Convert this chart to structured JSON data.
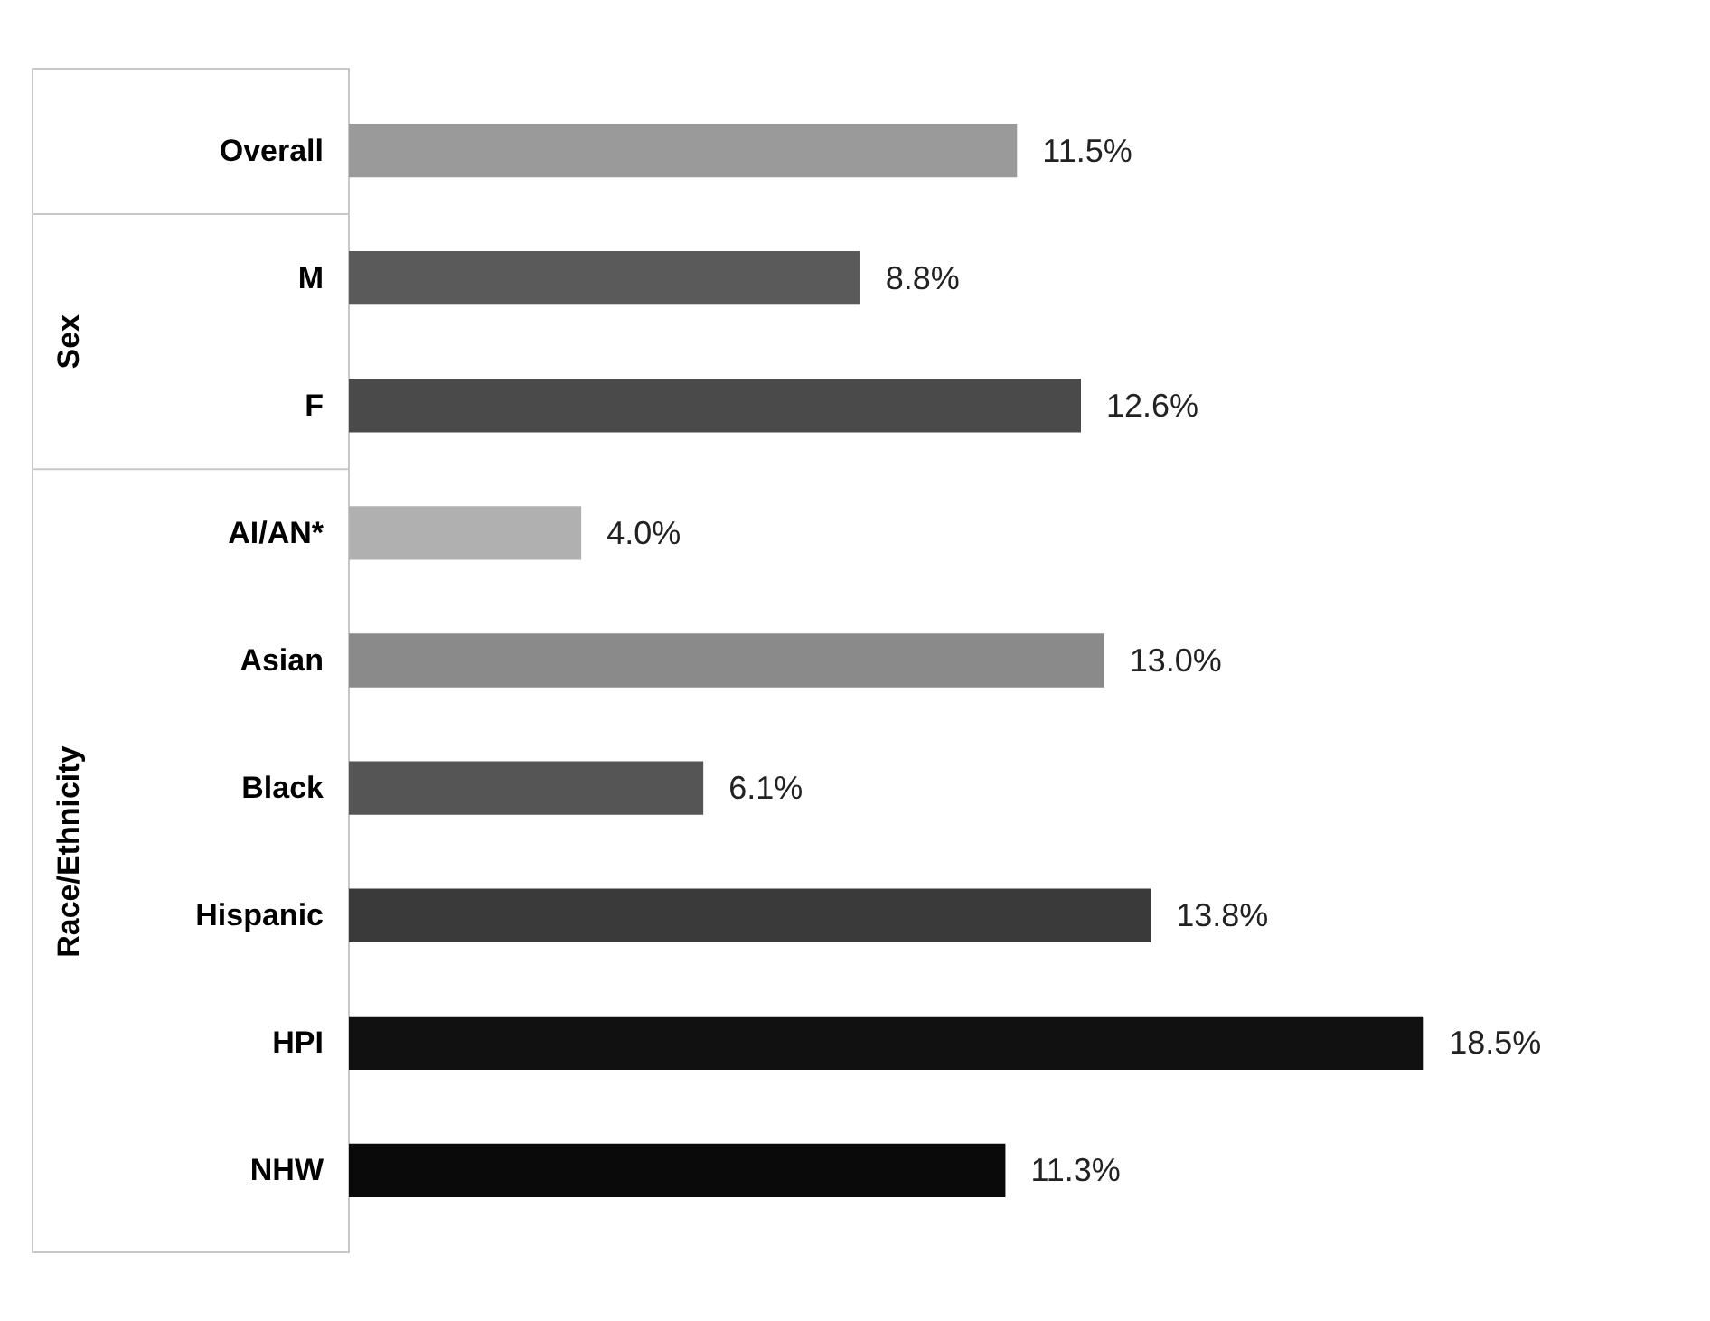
{
  "chart_data": {
    "type": "bar",
    "orientation": "horizontal",
    "categories": [
      "Overall",
      "M",
      "F",
      "AI/AN*",
      "Asian",
      "Black",
      "Hispanic",
      "HPI",
      "NHW"
    ],
    "values": [
      11.5,
      8.8,
      12.6,
      4.0,
      13.0,
      6.1,
      13.8,
      18.5,
      11.3
    ],
    "colors": [
      "#9a9a9a",
      "#5a5a5a",
      "#4a4a4a",
      "#b0b0b0",
      "#8a8a8a",
      "#555555",
      "#3a3a3a",
      "#111111",
      "#0a0a0a"
    ],
    "value_labels": [
      "11.5%",
      "8.8%",
      "12.6%",
      "4.0%",
      "13.0%",
      "6.1%",
      "13.8%",
      "18.5%",
      "11.3%"
    ],
    "annotations": [
      "Sex",
      "Race/Ethnicity"
    ],
    "tick_labels": "y"
  }
}
